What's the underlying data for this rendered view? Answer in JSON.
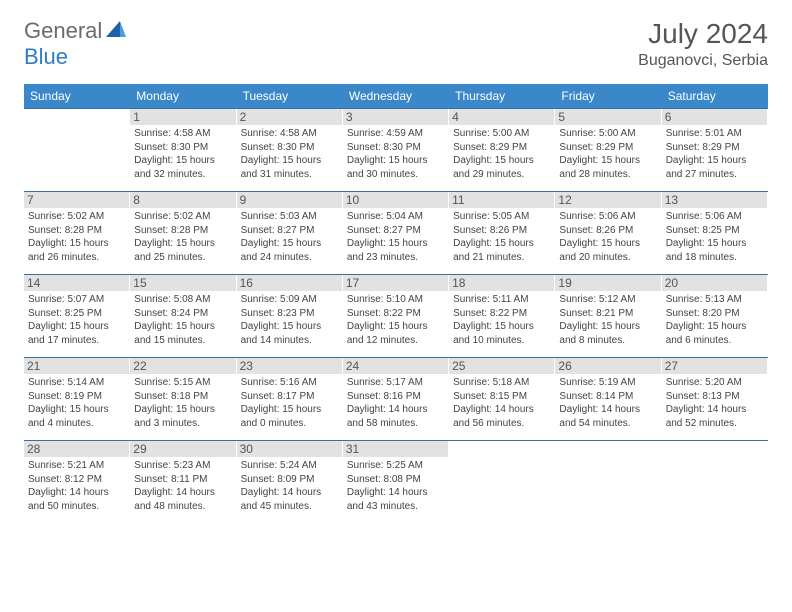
{
  "brand": {
    "part1": "General",
    "part2": "Blue"
  },
  "title": "July 2024",
  "location": "Buganovci, Serbia",
  "header_bg": "#3a87c9",
  "daynum_bg": "#e2e2e2",
  "weekdays": [
    "Sunday",
    "Monday",
    "Tuesday",
    "Wednesday",
    "Thursday",
    "Friday",
    "Saturday"
  ],
  "weeks": [
    [
      null,
      {
        "n": "1",
        "sr": "Sunrise: 4:58 AM",
        "ss": "Sunset: 8:30 PM",
        "dl": "Daylight: 15 hours and 32 minutes."
      },
      {
        "n": "2",
        "sr": "Sunrise: 4:58 AM",
        "ss": "Sunset: 8:30 PM",
        "dl": "Daylight: 15 hours and 31 minutes."
      },
      {
        "n": "3",
        "sr": "Sunrise: 4:59 AM",
        "ss": "Sunset: 8:30 PM",
        "dl": "Daylight: 15 hours and 30 minutes."
      },
      {
        "n": "4",
        "sr": "Sunrise: 5:00 AM",
        "ss": "Sunset: 8:29 PM",
        "dl": "Daylight: 15 hours and 29 minutes."
      },
      {
        "n": "5",
        "sr": "Sunrise: 5:00 AM",
        "ss": "Sunset: 8:29 PM",
        "dl": "Daylight: 15 hours and 28 minutes."
      },
      {
        "n": "6",
        "sr": "Sunrise: 5:01 AM",
        "ss": "Sunset: 8:29 PM",
        "dl": "Daylight: 15 hours and 27 minutes."
      }
    ],
    [
      {
        "n": "7",
        "sr": "Sunrise: 5:02 AM",
        "ss": "Sunset: 8:28 PM",
        "dl": "Daylight: 15 hours and 26 minutes."
      },
      {
        "n": "8",
        "sr": "Sunrise: 5:02 AM",
        "ss": "Sunset: 8:28 PM",
        "dl": "Daylight: 15 hours and 25 minutes."
      },
      {
        "n": "9",
        "sr": "Sunrise: 5:03 AM",
        "ss": "Sunset: 8:27 PM",
        "dl": "Daylight: 15 hours and 24 minutes."
      },
      {
        "n": "10",
        "sr": "Sunrise: 5:04 AM",
        "ss": "Sunset: 8:27 PM",
        "dl": "Daylight: 15 hours and 23 minutes."
      },
      {
        "n": "11",
        "sr": "Sunrise: 5:05 AM",
        "ss": "Sunset: 8:26 PM",
        "dl": "Daylight: 15 hours and 21 minutes."
      },
      {
        "n": "12",
        "sr": "Sunrise: 5:06 AM",
        "ss": "Sunset: 8:26 PM",
        "dl": "Daylight: 15 hours and 20 minutes."
      },
      {
        "n": "13",
        "sr": "Sunrise: 5:06 AM",
        "ss": "Sunset: 8:25 PM",
        "dl": "Daylight: 15 hours and 18 minutes."
      }
    ],
    [
      {
        "n": "14",
        "sr": "Sunrise: 5:07 AM",
        "ss": "Sunset: 8:25 PM",
        "dl": "Daylight: 15 hours and 17 minutes."
      },
      {
        "n": "15",
        "sr": "Sunrise: 5:08 AM",
        "ss": "Sunset: 8:24 PM",
        "dl": "Daylight: 15 hours and 15 minutes."
      },
      {
        "n": "16",
        "sr": "Sunrise: 5:09 AM",
        "ss": "Sunset: 8:23 PM",
        "dl": "Daylight: 15 hours and 14 minutes."
      },
      {
        "n": "17",
        "sr": "Sunrise: 5:10 AM",
        "ss": "Sunset: 8:22 PM",
        "dl": "Daylight: 15 hours and 12 minutes."
      },
      {
        "n": "18",
        "sr": "Sunrise: 5:11 AM",
        "ss": "Sunset: 8:22 PM",
        "dl": "Daylight: 15 hours and 10 minutes."
      },
      {
        "n": "19",
        "sr": "Sunrise: 5:12 AM",
        "ss": "Sunset: 8:21 PM",
        "dl": "Daylight: 15 hours and 8 minutes."
      },
      {
        "n": "20",
        "sr": "Sunrise: 5:13 AM",
        "ss": "Sunset: 8:20 PM",
        "dl": "Daylight: 15 hours and 6 minutes."
      }
    ],
    [
      {
        "n": "21",
        "sr": "Sunrise: 5:14 AM",
        "ss": "Sunset: 8:19 PM",
        "dl": "Daylight: 15 hours and 4 minutes."
      },
      {
        "n": "22",
        "sr": "Sunrise: 5:15 AM",
        "ss": "Sunset: 8:18 PM",
        "dl": "Daylight: 15 hours and 3 minutes."
      },
      {
        "n": "23",
        "sr": "Sunrise: 5:16 AM",
        "ss": "Sunset: 8:17 PM",
        "dl": "Daylight: 15 hours and 0 minutes."
      },
      {
        "n": "24",
        "sr": "Sunrise: 5:17 AM",
        "ss": "Sunset: 8:16 PM",
        "dl": "Daylight: 14 hours and 58 minutes."
      },
      {
        "n": "25",
        "sr": "Sunrise: 5:18 AM",
        "ss": "Sunset: 8:15 PM",
        "dl": "Daylight: 14 hours and 56 minutes."
      },
      {
        "n": "26",
        "sr": "Sunrise: 5:19 AM",
        "ss": "Sunset: 8:14 PM",
        "dl": "Daylight: 14 hours and 54 minutes."
      },
      {
        "n": "27",
        "sr": "Sunrise: 5:20 AM",
        "ss": "Sunset: 8:13 PM",
        "dl": "Daylight: 14 hours and 52 minutes."
      }
    ],
    [
      {
        "n": "28",
        "sr": "Sunrise: 5:21 AM",
        "ss": "Sunset: 8:12 PM",
        "dl": "Daylight: 14 hours and 50 minutes."
      },
      {
        "n": "29",
        "sr": "Sunrise: 5:23 AM",
        "ss": "Sunset: 8:11 PM",
        "dl": "Daylight: 14 hours and 48 minutes."
      },
      {
        "n": "30",
        "sr": "Sunrise: 5:24 AM",
        "ss": "Sunset: 8:09 PM",
        "dl": "Daylight: 14 hours and 45 minutes."
      },
      {
        "n": "31",
        "sr": "Sunrise: 5:25 AM",
        "ss": "Sunset: 8:08 PM",
        "dl": "Daylight: 14 hours and 43 minutes."
      },
      null,
      null,
      null
    ]
  ]
}
